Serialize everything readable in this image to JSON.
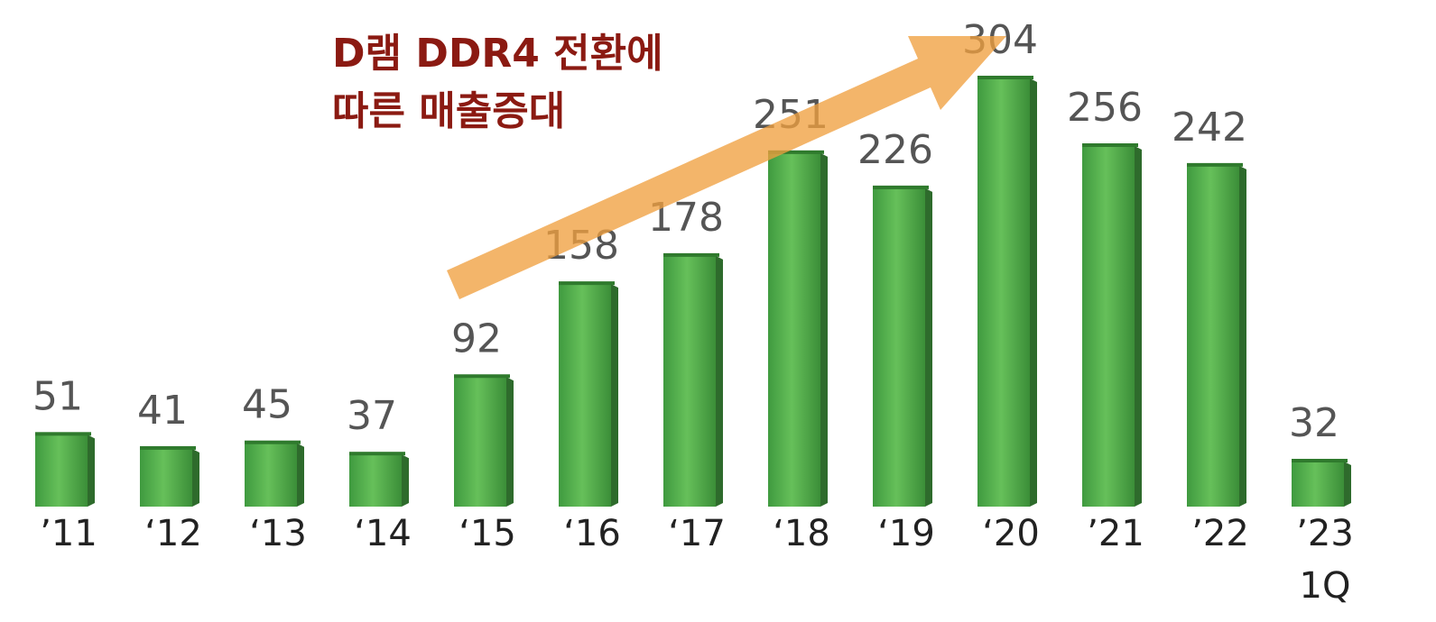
{
  "chart_data": {
    "type": "bar",
    "annotation": "D램 DDR4 전환에\n따른 매출증대",
    "categories": [
      "’11",
      "‘12",
      "‘13",
      "‘14",
      "‘15",
      "‘16",
      "‘17",
      "‘18",
      "‘19",
      "‘20",
      "’21",
      "’22",
      "’23\n1Q"
    ],
    "values": [
      51,
      41,
      45,
      37,
      92,
      158,
      178,
      251,
      226,
      304,
      256,
      242,
      32
    ],
    "color": "#4caf50"
  }
}
